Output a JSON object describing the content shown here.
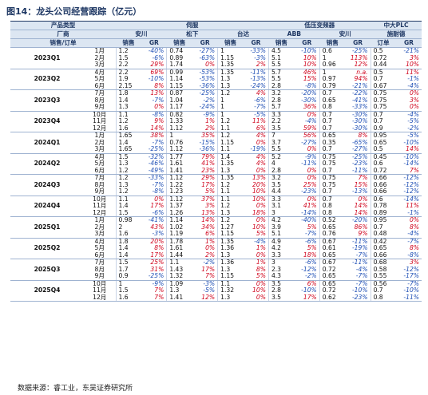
{
  "title": "图14：龙头公司经营跟踪（亿元）",
  "source": "数据来源：睿工业，东吴证券研究所",
  "header": {
    "row1": [
      "产品类型",
      "伺服",
      "低压变频器",
      "中大PLC"
    ],
    "row2": [
      "厂商",
      "安川",
      "松下",
      "台达",
      "ABB",
      "安川",
      "施耐德"
    ],
    "row3": [
      "销售/订单",
      "销售",
      "GR",
      "销售",
      "GR",
      "销售",
      "GR",
      "销售",
      "GR",
      "销售",
      "GR",
      "订单",
      "GR"
    ]
  },
  "groups": [
    {
      "quarter": "2023Q1",
      "months": [
        {
          "month": "1月",
          "cells": [
            "1.2",
            "-40%",
            "0.74",
            "-27%",
            "1",
            "-33%",
            "4.5",
            "-10%",
            "0.6",
            "-25%",
            "0.5",
            "-21%"
          ]
        },
        {
          "month": "2月",
          "cells": [
            "1.5",
            "-6%",
            "0.89",
            "-63%",
            "1.15",
            "-3%",
            "5.1",
            "10%",
            "1",
            "113%",
            "0.72",
            "3%"
          ]
        },
        {
          "month": "3月",
          "cells": [
            "2.2",
            "29%",
            "1.74",
            "0%",
            "1.35",
            "2%",
            "5.5",
            "10%",
            "0.96",
            "12%",
            "0.44",
            "10%"
          ]
        }
      ]
    },
    {
      "quarter": "2023Q2",
      "months": [
        {
          "month": "4月",
          "cells": [
            "2.2",
            "69%",
            "0.99",
            "-53%",
            "1.35",
            "-11%",
            "5.7",
            "46%",
            "1",
            "n.a.",
            "0.5",
            "11%"
          ]
        },
        {
          "month": "5月",
          "cells": [
            "1.9",
            "-10%",
            "1.14",
            "-53%",
            "1.3",
            "-13%",
            "5.5",
            "15%",
            "0.97",
            "94%",
            "0.7",
            "-1%"
          ]
        },
        {
          "month": "6月",
          "cells": [
            "2.15",
            "8%",
            "1.15",
            "-36%",
            "1.3",
            "-24%",
            "2.8",
            "-8%",
            "0.79",
            "-21%",
            "0.67",
            "-4%"
          ]
        }
      ]
    },
    {
      "quarter": "2023Q3",
      "months": [
        {
          "month": "7月",
          "cells": [
            "1.8",
            "13%",
            "0.87",
            "-25%",
            "1.2",
            "4%",
            "3.2",
            "-20%",
            "0.7",
            "-22%",
            "0.75",
            "0%"
          ]
        },
        {
          "month": "8月",
          "cells": [
            "1.4",
            "-7%",
            "1.04",
            "-2%",
            "1",
            "-6%",
            "2.8",
            "-30%",
            "0.65",
            "-41%",
            "0.75",
            "3%"
          ]
        },
        {
          "month": "9月",
          "cells": [
            "1.3",
            "0%",
            "1.17",
            "-24%",
            "1",
            "-7%",
            "5.7",
            "36%",
            "0.8",
            "-33%",
            "0.75",
            "0%"
          ]
        }
      ]
    },
    {
      "quarter": "2023Q4",
      "months": [
        {
          "month": "10月",
          "cells": [
            "1.1",
            "-8%",
            "0.82",
            "-9%",
            "1",
            "-5%",
            "3.3",
            "0%",
            "0.7",
            "-30%",
            "0.7",
            "-4%"
          ]
        },
        {
          "month": "11月",
          "cells": [
            "1.2",
            "9%",
            "1.33",
            "1%",
            "1.2",
            "11%",
            "2.2",
            "-4%",
            "0.7",
            "-30%",
            "0.7",
            "-5%"
          ]
        },
        {
          "month": "12月",
          "cells": [
            "1.6",
            "14%",
            "1.12",
            "2%",
            "1.1",
            "6%",
            "3.5",
            "59%",
            "0.7",
            "-30%",
            "0.9",
            "-2%"
          ]
        }
      ]
    },
    {
      "quarter": "2024Q1",
      "months": [
        {
          "month": "1月",
          "cells": [
            "1.65",
            "38%",
            "1",
            "35%",
            "1.2",
            "4%",
            "7",
            "56%",
            "0.65",
            "8%",
            "0.95",
            "-5%"
          ]
        },
        {
          "month": "2月",
          "cells": [
            "1.4",
            "-7%",
            "0.76",
            "-15%",
            "1.15",
            "0%",
            "3.7",
            "-27%",
            "0.35",
            "-65%",
            "0.65",
            "-10%"
          ]
        },
        {
          "month": "3月",
          "cells": [
            "1.65",
            "-25%",
            "1.12",
            "-36%",
            "1.1",
            "-19%",
            "5.5",
            "0%",
            "0.7",
            "-27%",
            "0.5",
            "14%"
          ]
        }
      ]
    },
    {
      "quarter": "2024Q2",
      "months": [
        {
          "month": "4月",
          "cells": [
            "1.5",
            "-32%",
            "1.77",
            "79%",
            "1.4",
            "4%",
            "5.2",
            "-9%",
            "0.75",
            "-25%",
            "0.45",
            "-10%"
          ]
        },
        {
          "month": "5月",
          "cells": [
            "1.3",
            "-46%",
            "1.61",
            "41%",
            "1.35",
            "4%",
            "4",
            "-11%",
            "0.75",
            "-23%",
            "0.6",
            "-14%"
          ]
        },
        {
          "month": "6月",
          "cells": [
            "1.2",
            "-49%",
            "1.41",
            "23%",
            "1.3",
            "0%",
            "2.8",
            "0%",
            "0.7",
            "-11%",
            "0.72",
            "7%"
          ]
        }
      ]
    },
    {
      "quarter": "2024Q3",
      "months": [
        {
          "month": "7月",
          "cells": [
            "1.2",
            "-33%",
            "1.12",
            "29%",
            "1.35",
            "13%",
            "3.2",
            "0%",
            "0.75",
            "7%",
            "0.66",
            "-12%"
          ]
        },
        {
          "month": "8月",
          "cells": [
            "1.3",
            "-7%",
            "1.22",
            "17%",
            "1.2",
            "20%",
            "3.5",
            "25%",
            "0.75",
            "15%",
            "0.66",
            "-12%"
          ]
        },
        {
          "month": "9月",
          "cells": [
            "1.2",
            "-8%",
            "1.23",
            "5%",
            "1.1",
            "10%",
            "4.4",
            "-23%",
            "0.7",
            "-13%",
            "0.66",
            "-12%"
          ]
        }
      ]
    },
    {
      "quarter": "2024Q4",
      "months": [
        {
          "month": "10月",
          "cells": [
            "1.1",
            "0%",
            "1.12",
            "37%",
            "1.1",
            "10%",
            "3.3",
            "0%",
            "0.7",
            "0%",
            "0.6",
            "-14%"
          ]
        },
        {
          "month": "11月",
          "cells": [
            "1.4",
            "17%",
            "1.37",
            "3%",
            "1.2",
            "0%",
            "3.1",
            "41%",
            "0.8",
            "14%",
            "0.78",
            "11%"
          ]
        },
        {
          "month": "12月",
          "cells": [
            "1.5",
            "-6%",
            "1.26",
            "13%",
            "1.3",
            "18%",
            "3",
            "-14%",
            "0.8",
            "14%",
            "0.89",
            "-1%"
          ]
        }
      ]
    },
    {
      "quarter": "2025Q1",
      "months": [
        {
          "month": "1月",
          "cells": [
            "0.98",
            "-41%",
            "1.14",
            "14%",
            "1.2",
            "0%",
            "4.2",
            "-40%",
            "0.52",
            "-20%",
            "0.95",
            "0%"
          ]
        },
        {
          "month": "2月",
          "cells": [
            "2",
            "43%",
            "1.02",
            "34%",
            "1.27",
            "10%",
            "3.9",
            "5%",
            "0.65",
            "86%",
            "0.7",
            "8%"
          ]
        },
        {
          "month": "3月",
          "cells": [
            "1.6",
            "-3%",
            "1.19",
            "6%",
            "1.15",
            "5%",
            "5.1",
            "-7%",
            "0.76",
            "9%",
            "0.48",
            "-4%"
          ]
        }
      ]
    },
    {
      "quarter": "2025Q2",
      "months": [
        {
          "month": "4月",
          "cells": [
            "1.8",
            "20%",
            "1.78",
            "1%",
            "1.35",
            "-4%",
            "4.9",
            "-6%",
            "0.67",
            "-11%",
            "0.42",
            "-7%"
          ]
        },
        {
          "month": "5月",
          "cells": [
            "1.4",
            "8%",
            "1.61",
            "0%",
            "1.36",
            "1%",
            "4.2",
            "5%",
            "0.61",
            "-19%",
            "0.65",
            "8%"
          ]
        },
        {
          "month": "6月",
          "cells": [
            "1.4",
            "17%",
            "1.44",
            "2%",
            "1.3",
            "0%",
            "3.3",
            "18%",
            "0.65",
            "-7%",
            "0.66",
            "-8%"
          ]
        }
      ]
    },
    {
      "quarter": "2025Q3",
      "months": [
        {
          "month": "7月",
          "cells": [
            "1.5",
            "25%",
            "1.1",
            "-2%",
            "1.36",
            "1%",
            "3",
            "-6%",
            "0.67",
            "-11%",
            "0.68",
            "3%"
          ]
        },
        {
          "month": "8月",
          "cells": [
            "1.7",
            "31%",
            "1.43",
            "17%",
            "1.3",
            "8%",
            "2.3",
            "-12%",
            "0.72",
            "-4%",
            "0.58",
            "-12%"
          ]
        },
        {
          "month": "9月",
          "cells": [
            "0.9",
            "-25%",
            "1.32",
            "7%",
            "1.15",
            "5%",
            "4.3",
            "-2%",
            "0.65",
            "-7%",
            "0.55",
            "-17%"
          ]
        }
      ]
    },
    {
      "quarter": "2025Q4",
      "months": [
        {
          "month": "10月",
          "cells": [
            "1",
            "-9%",
            "1.09",
            "-3%",
            "1.1",
            "0%",
            "3.5",
            "6%",
            "0.65",
            "-7%",
            "0.56",
            "-7%"
          ]
        },
        {
          "month": "11月",
          "cells": [
            "1.5",
            "7%",
            "1.3",
            "-5%",
            "1.32",
            "10%",
            "2.8",
            "-10%",
            "0.72",
            "-10%",
            "0.7",
            "-10%"
          ]
        },
        {
          "month": "12月",
          "cells": [
            "1.6",
            "7%",
            "1.41",
            "12%",
            "1.3",
            "0%",
            "3.5",
            "17%",
            "0.62",
            "-23%",
            "0.8",
            "-11%"
          ]
        }
      ]
    }
  ]
}
